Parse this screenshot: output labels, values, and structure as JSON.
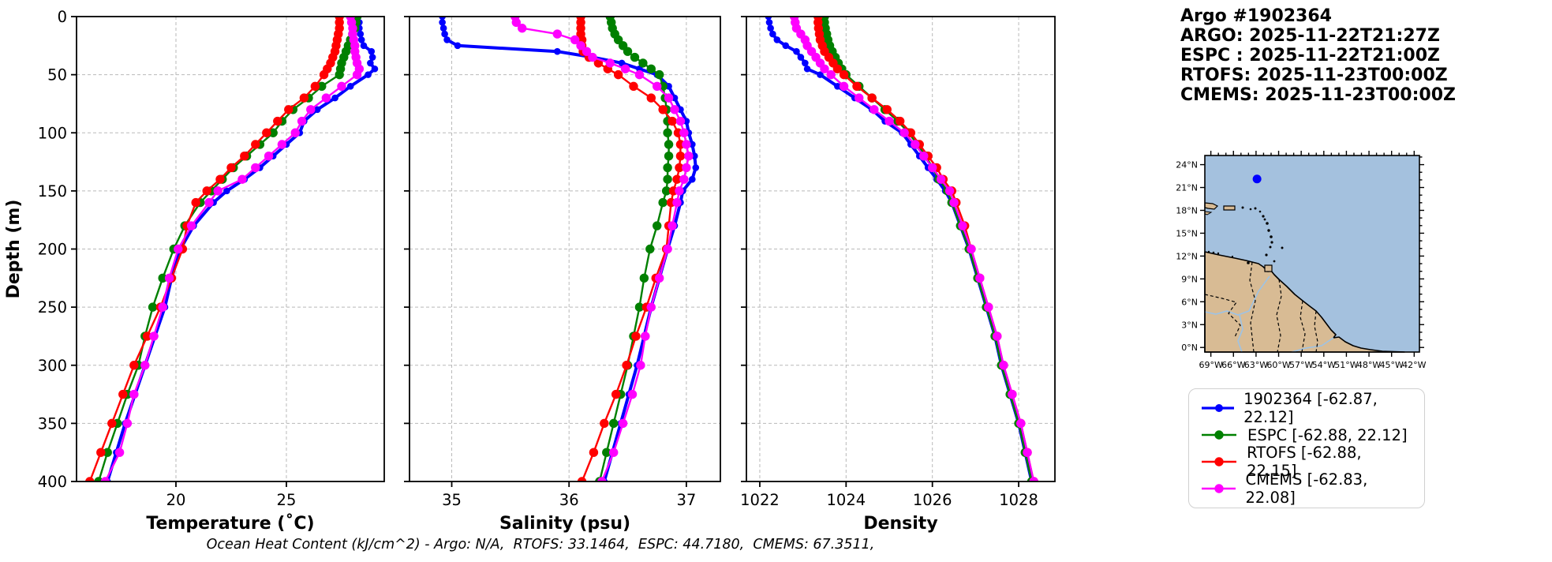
{
  "header": {
    "lines": [
      "Argo #1902364",
      "ARGO: 2025-11-22T21:27Z",
      "ESPC : 2025-11-22T21:00Z",
      "RTOFS: 2025-11-23T00:00Z",
      "CMEMS: 2025-11-23T00:00Z"
    ]
  },
  "footer": {
    "text": "Ocean Heat Content (kJ/cm^2) - Argo: N/A,  RTOFS: 33.1464,  ESPC: 44.7180,  CMEMS: 67.3511,"
  },
  "legend": {
    "entries": [
      {
        "label": "1902364 [-62.87, 22.12]",
        "color": "#0000ff",
        "thick": true
      },
      {
        "label": "ESPC [-62.88, 22.12]",
        "color": "#008000",
        "thick": false
      },
      {
        "label": "RTOFS [-62.88, 22.15]",
        "color": "#ff0000",
        "thick": false
      },
      {
        "label": "CMEMS [-62.83, 22.08]",
        "color": "#ff00ff",
        "thick": false
      }
    ]
  },
  "map": {
    "lat_labels": [
      "24°N",
      "21°N",
      "18°N",
      "15°N",
      "12°N",
      "9°N",
      "6°N",
      "3°N",
      "0°N"
    ],
    "lat_values": [
      24,
      21,
      18,
      15,
      12,
      9,
      6,
      3,
      0
    ],
    "lon_labels": [
      "69°W",
      "66°W",
      "63°W",
      "60°W",
      "57°W",
      "54°W",
      "51°W",
      "48°W",
      "45°W",
      "42°W"
    ],
    "lon_values": [
      -69,
      -66,
      -63,
      -60,
      -57,
      -54,
      -51,
      -48,
      -45,
      -42
    ],
    "extent": {
      "lon_min": -69.8,
      "lon_max": -41.3,
      "lat_min": -0.6,
      "lat_max": 25.2
    },
    "float_marker": {
      "lon": -62.87,
      "lat": 22.12,
      "color": "#0000ff"
    },
    "ocean_color": "#a4c1de",
    "land_color": "#d8bb94",
    "river_color": "#9dc3e6"
  },
  "chart_data": [
    {
      "type": "line",
      "title": "",
      "xlabel": "Temperature (˚C)",
      "ylabel": "Depth (m)",
      "xlim": [
        15.5,
        29.43
      ],
      "ylim": [
        400,
        0
      ],
      "xticks": [
        20,
        25
      ],
      "yticks": [
        0,
        50,
        100,
        150,
        200,
        250,
        300,
        350,
        400
      ],
      "grid": true,
      "depths": [
        0,
        5,
        10,
        15,
        20,
        25,
        30,
        35,
        40,
        45,
        50,
        60,
        70,
        80,
        90,
        100,
        110,
        120,
        130,
        140,
        150,
        160,
        180,
        200,
        225,
        250,
        275,
        300,
        325,
        350,
        375,
        400
      ],
      "series": [
        {
          "name": "1902364",
          "color": "#0000ff",
          "values": [
            28.25,
            28.3,
            28.3,
            28.35,
            28.4,
            28.5,
            28.85,
            28.9,
            28.8,
            29.0,
            28.7,
            27.9,
            27.2,
            26.4,
            25.8,
            25.6,
            25.0,
            24.4,
            23.8,
            23.1,
            22.3,
            21.7,
            20.8,
            20.2,
            19.8,
            19.5,
            19.05,
            18.6,
            18.15,
            17.7,
            17.3,
            16.9
          ]
        },
        {
          "name": "ESPC",
          "color": "#008000",
          "values": [
            28.2,
            28.15,
            28.1,
            28.0,
            27.9,
            27.8,
            27.7,
            27.6,
            27.5,
            27.45,
            27.4,
            26.6,
            26.0,
            25.3,
            24.8,
            24.4,
            23.8,
            23.2,
            22.6,
            22.1,
            21.6,
            21.1,
            20.4,
            19.9,
            19.4,
            18.95,
            18.6,
            18.3,
            17.8,
            17.35,
            16.9,
            16.5
          ]
        },
        {
          "name": "RTOFS",
          "color": "#ff0000",
          "values": [
            27.4,
            27.4,
            27.4,
            27.35,
            27.3,
            27.25,
            27.2,
            27.1,
            27.0,
            26.85,
            26.7,
            26.3,
            25.8,
            25.1,
            24.6,
            24.1,
            23.6,
            23.1,
            22.5,
            22.0,
            21.4,
            20.9,
            20.5,
            20.3,
            19.8,
            19.3,
            18.7,
            18.1,
            17.6,
            17.1,
            16.6,
            16.1
          ]
        },
        {
          "name": "CMEMS",
          "color": "#ff00ff",
          "values": [
            27.9,
            27.95,
            28.0,
            28.0,
            28.05,
            28.1,
            28.1,
            28.15,
            28.2,
            28.3,
            28.2,
            27.5,
            26.8,
            26.1,
            25.7,
            25.4,
            24.8,
            24.2,
            23.6,
            23.0,
            21.9,
            21.5,
            20.7,
            20.1,
            19.7,
            19.4,
            19.0,
            18.6,
            18.1,
            17.8,
            17.45,
            16.8
          ]
        }
      ]
    },
    {
      "type": "line",
      "title": "",
      "xlabel": "Salinity (psu)",
      "ylabel": "",
      "xlim": [
        34.64,
        37.29
      ],
      "ylim": [
        400,
        0
      ],
      "xticks": [
        35,
        36,
        37
      ],
      "yticks": [
        0,
        50,
        100,
        150,
        200,
        250,
        300,
        350,
        400
      ],
      "grid": true,
      "depths": [
        0,
        5,
        10,
        15,
        20,
        25,
        30,
        35,
        40,
        45,
        50,
        60,
        70,
        80,
        90,
        100,
        110,
        120,
        130,
        140,
        150,
        160,
        180,
        200,
        225,
        250,
        275,
        300,
        325,
        350,
        375,
        400
      ],
      "series": [
        {
          "name": "1902364",
          "color": "#0000ff",
          "values": [
            34.92,
            34.92,
            34.93,
            34.94,
            34.96,
            35.05,
            35.9,
            36.2,
            36.45,
            36.6,
            36.75,
            36.85,
            36.9,
            36.95,
            37.0,
            37.02,
            37.05,
            37.07,
            37.08,
            37.05,
            36.97,
            36.95,
            36.9,
            36.84,
            36.77,
            36.7,
            36.64,
            36.58,
            36.51,
            36.44,
            36.37,
            36.3
          ]
        },
        {
          "name": "ESPC",
          "color": "#008000",
          "values": [
            36.35,
            36.36,
            36.37,
            36.39,
            36.42,
            36.46,
            36.5,
            36.56,
            36.63,
            36.7,
            36.77,
            36.8,
            36.82,
            36.83,
            36.84,
            36.84,
            36.85,
            36.85,
            36.84,
            36.84,
            36.83,
            36.8,
            36.75,
            36.69,
            36.64,
            36.6,
            36.55,
            36.5,
            36.44,
            36.38,
            36.32,
            36.26
          ]
        },
        {
          "name": "RTOFS",
          "color": "#ff0000",
          "values": [
            36.1,
            36.1,
            36.1,
            36.1,
            36.11,
            36.11,
            36.12,
            36.17,
            36.25,
            36.33,
            36.42,
            36.55,
            36.7,
            36.8,
            36.88,
            36.93,
            36.95,
            36.95,
            36.94,
            36.92,
            36.89,
            36.87,
            36.85,
            36.83,
            36.74,
            36.66,
            36.57,
            36.49,
            36.4,
            36.3,
            36.21,
            36.11
          ]
        },
        {
          "name": "CMEMS",
          "color": "#ff00ff",
          "values": [
            35.54,
            35.55,
            35.6,
            35.9,
            36.05,
            36.1,
            36.15,
            36.2,
            36.35,
            36.48,
            36.6,
            36.75,
            36.85,
            36.9,
            36.95,
            36.98,
            37.0,
            37.02,
            37.0,
            36.98,
            36.94,
            36.92,
            36.88,
            36.84,
            36.77,
            36.7,
            36.65,
            36.61,
            36.54,
            36.46,
            36.38,
            36.28
          ]
        }
      ]
    },
    {
      "type": "line",
      "title": "",
      "xlabel": "Density",
      "ylabel": "",
      "xlim": [
        1021.69,
        1028.84
      ],
      "ylim": [
        400,
        0
      ],
      "xticks": [
        1022,
        1024,
        1026,
        1028
      ],
      "yticks": [
        0,
        50,
        100,
        150,
        200,
        250,
        300,
        350,
        400
      ],
      "grid": true,
      "depths": [
        0,
        5,
        10,
        15,
        20,
        25,
        30,
        35,
        40,
        45,
        50,
        60,
        70,
        80,
        90,
        100,
        110,
        120,
        130,
        140,
        150,
        160,
        180,
        200,
        225,
        250,
        275,
        300,
        325,
        350,
        375,
        400
      ],
      "series": [
        {
          "name": "1902364",
          "color": "#0000ff",
          "values": [
            1022.2,
            1022.22,
            1022.25,
            1022.3,
            1022.4,
            1022.6,
            1022.85,
            1022.95,
            1023.05,
            1023.1,
            1023.4,
            1023.8,
            1024.2,
            1024.6,
            1024.9,
            1025.3,
            1025.5,
            1025.7,
            1025.9,
            1026.1,
            1026.3,
            1026.45,
            1026.65,
            1026.85,
            1027.05,
            1027.25,
            1027.45,
            1027.6,
            1027.8,
            1028.0,
            1028.15,
            1028.3
          ]
        },
        {
          "name": "ESPC",
          "color": "#008000",
          "values": [
            1023.5,
            1023.5,
            1023.52,
            1023.55,
            1023.58,
            1023.62,
            1023.68,
            1023.75,
            1023.82,
            1023.9,
            1024.0,
            1024.3,
            1024.6,
            1024.9,
            1025.2,
            1025.45,
            1025.65,
            1025.85,
            1026.0,
            1026.15,
            1026.35,
            1026.45,
            1026.65,
            1026.85,
            1027.05,
            1027.25,
            1027.45,
            1027.6,
            1027.8,
            1028.0,
            1028.15,
            1028.3
          ]
        },
        {
          "name": "RTOFS",
          "color": "#ff0000",
          "values": [
            1023.35,
            1023.35,
            1023.36,
            1023.38,
            1023.4,
            1023.45,
            1023.5,
            1023.6,
            1023.7,
            1023.8,
            1023.95,
            1024.25,
            1024.6,
            1024.95,
            1025.25,
            1025.5,
            1025.7,
            1025.9,
            1026.1,
            1026.25,
            1026.45,
            1026.55,
            1026.75,
            1026.9,
            1027.1,
            1027.3,
            1027.5,
            1027.65,
            1027.85,
            1028.05,
            1028.2,
            1028.35
          ]
        },
        {
          "name": "CMEMS",
          "color": "#ff00ff",
          "values": [
            1022.8,
            1022.82,
            1022.85,
            1022.95,
            1023.05,
            1023.1,
            1023.2,
            1023.3,
            1023.4,
            1023.5,
            1023.65,
            1023.95,
            1024.3,
            1024.65,
            1025.0,
            1025.35,
            1025.6,
            1025.8,
            1026.0,
            1026.2,
            1026.4,
            1026.5,
            1026.7,
            1026.9,
            1027.1,
            1027.3,
            1027.5,
            1027.65,
            1027.85,
            1028.05,
            1028.2,
            1028.35
          ]
        }
      ]
    }
  ]
}
